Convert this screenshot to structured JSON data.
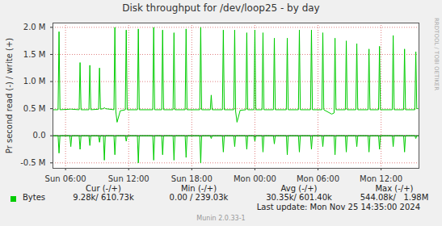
{
  "chart_data": {
    "type": "line",
    "title": "Disk throughput for /dev/loop25 - by day",
    "y_label": "Pr second read (-) / write (+)",
    "x": [
      4.8,
      5.29,
      5.38,
      5.47,
      6.41,
      6.5,
      6.59,
      7.29,
      7.38,
      7.47,
      8.22,
      8.31,
      8.4,
      9.14,
      9.23,
      9.32,
      9.6,
      9.69,
      9.78,
      10.6,
      10.69,
      10.78,
      10.9,
      11.2,
      11.68,
      11.77,
      11.86,
      12.83,
      12.92,
      13.01,
      14.29,
      14.38,
      14.47,
      15.14,
      15.23,
      15.32,
      16.22,
      16.31,
      16.4,
      17.37,
      17.46,
      17.55,
      18.76,
      18.85,
      18.94,
      19.76,
      19.85,
      19.94,
      20.91,
      21.0,
      21.09,
      21.99,
      22.08,
      22.17,
      22.3,
      22.6,
      23.14,
      23.23,
      23.32,
      23.91,
      24.0,
      24.09,
      24.68,
      24.77,
      24.86,
      25.76,
      25.85,
      25.94,
      26.99,
      27.08,
      27.17,
      28.14,
      28.23,
      28.32,
      29.29,
      29.38,
      29.47,
      30.37,
      30.46,
      30.55,
      31.3,
      31.53,
      31.62,
      31.71,
      32.6,
      32.69,
      32.78,
      33.6,
      33.69,
      33.78,
      34.76,
      34.85,
      34.94,
      35.76,
      35.85,
      35.94,
      37.06,
      37.15,
      37.24,
      38.14,
      38.23,
      38.32,
      39.21,
      39.3,
      39.39,
      39.5
    ],
    "series": [
      {
        "name": "Bytes",
        "color": "#00cc00",
        "values": [
          0.48,
          0.48,
          1.92,
          0.48,
          0.49,
          0.49,
          0.49,
          0.48,
          1.35,
          0.48,
          0.48,
          1.3,
          0.48,
          0.49,
          1.25,
          0.49,
          0.5,
          0.52,
          0.5,
          0.48,
          2.0,
          0.45,
          0.25,
          0.46,
          0.48,
          1.95,
          0.48,
          0.48,
          1.97,
          0.48,
          0.48,
          2.0,
          0.48,
          0.48,
          1.95,
          0.48,
          0.48,
          1.9,
          0.48,
          0.48,
          1.97,
          0.48,
          0.48,
          2.0,
          0.48,
          0.48,
          0.75,
          0.48,
          0.48,
          1.95,
          0.48,
          0.48,
          1.95,
          0.45,
          0.25,
          0.47,
          0.48,
          1.9,
          0.48,
          0.48,
          1.95,
          0.48,
          0.48,
          1.9,
          0.48,
          0.48,
          1.8,
          0.48,
          0.48,
          1.8,
          0.48,
          0.48,
          1.95,
          0.48,
          0.48,
          1.95,
          0.48,
          0.48,
          1.9,
          0.48,
          0.4,
          0.42,
          1.8,
          0.48,
          0.48,
          1.75,
          0.48,
          0.48,
          1.7,
          0.48,
          0.48,
          1.6,
          0.48,
          0.48,
          1.65,
          0.48,
          0.48,
          1.85,
          0.48,
          0.48,
          1.6,
          0.48,
          0.48,
          1.55,
          0.5,
          0.5
        ],
        "read_values": [
          0,
          0,
          -0.32,
          0,
          0,
          -0.2,
          0,
          0,
          -0.25,
          0,
          0,
          -0.18,
          0,
          0,
          -0.12,
          0,
          0,
          -0.45,
          0,
          0,
          -0.35,
          0,
          0,
          0,
          0,
          -0.1,
          0,
          0,
          -0.5,
          0,
          0,
          -0.45,
          0,
          0,
          -0.35,
          0,
          0,
          -0.45,
          0,
          0,
          -0.4,
          0,
          0,
          -0.5,
          0,
          0,
          -0.05,
          0,
          0,
          -0.3,
          0,
          0,
          -0.2,
          0,
          0,
          0,
          0,
          -0.25,
          0,
          0,
          -0.1,
          0,
          0,
          -0.3,
          0,
          0,
          -0.15,
          0,
          0,
          -0.35,
          0,
          0,
          -0.3,
          0,
          0,
          -0.25,
          0,
          0,
          -0.2,
          0,
          0,
          0,
          -0.35,
          0,
          0,
          -0.3,
          0,
          0,
          -0.2,
          0,
          0,
          -0.3,
          0,
          0,
          -0.25,
          0,
          0,
          -0.2,
          0,
          0,
          -0.3,
          0,
          0,
          -0.05,
          0,
          0
        ]
      }
    ],
    "xlim": [
      4.8,
      39.6
    ],
    "xticks": [
      {
        "value": 6,
        "label": "Sun 06:00"
      },
      {
        "value": 12,
        "label": "Sun 12:00"
      },
      {
        "value": 18,
        "label": "Sun 18:00"
      },
      {
        "value": 24,
        "label": "Mon 00:00"
      },
      {
        "value": 30,
        "label": "Mon 06:00"
      },
      {
        "value": 36,
        "label": "Mon 12:00"
      }
    ],
    "ylim": [
      -0.6,
      2.08
    ],
    "yticks": [
      {
        "value": -0.5,
        "label": "-0.5 M"
      },
      {
        "value": 0,
        "label": "0.0"
      },
      {
        "value": 0.5,
        "label": "0.5 M"
      },
      {
        "value": 1,
        "label": "1.0 M"
      },
      {
        "value": 1.5,
        "label": "1.5 M"
      },
      {
        "value": 2,
        "label": "2.0 M"
      }
    ],
    "grid": true,
    "summary": {
      "headers": [
        "Cur (-/+)",
        "Min (-/+)",
        "Avg (-/+)",
        "Max (-/+)"
      ],
      "rows": [
        {
          "name": "Bytes",
          "values": [
            "9.28k/ 610.73k",
            "0.00 / 239.03k",
            "30.35k/ 601.40k",
            "544.08k/   1.98M"
          ]
        }
      ]
    },
    "last_update": "Last update: Mon Nov 25 14:35:00 2024",
    "credit": "Munin 2.0.33-1",
    "side_text": "RRDTOOL / TOBI OETIKER"
  }
}
